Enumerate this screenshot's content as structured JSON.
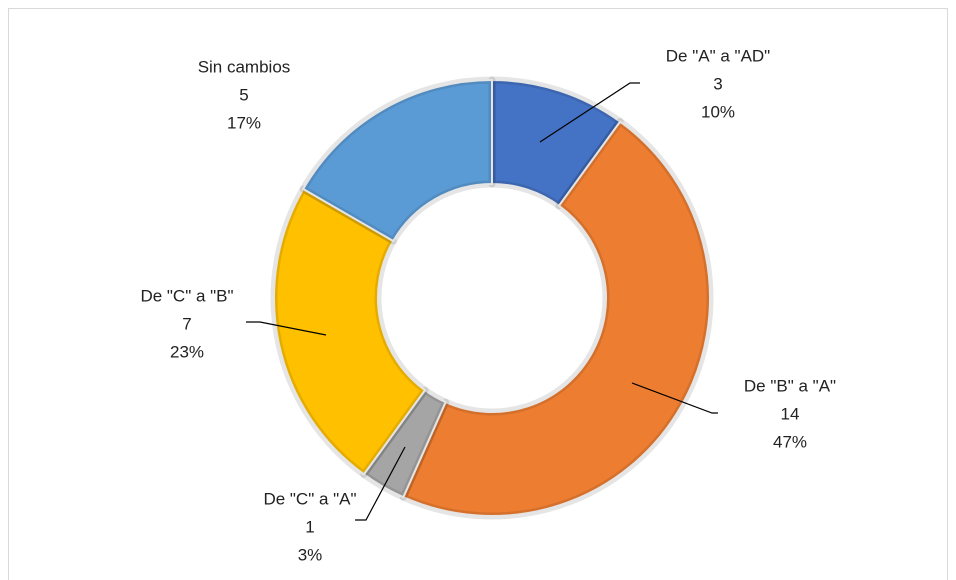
{
  "chart_data": {
    "type": "donut",
    "categories": [
      "De \"A\" a \"AD\"",
      "De \"B\" a \"A\"",
      "De \"C\" a \"A\"",
      "De \"C\" a \"B\"",
      "Sin cambios"
    ],
    "values": [
      3,
      14,
      1,
      7,
      5
    ],
    "percentage_labels": [
      "10%",
      "47%",
      "3%",
      "23%",
      "17%"
    ],
    "colors": [
      "#4472c4",
      "#ed7d31",
      "#a5a5a5",
      "#ffc000",
      "#5b9bd5"
    ]
  }
}
